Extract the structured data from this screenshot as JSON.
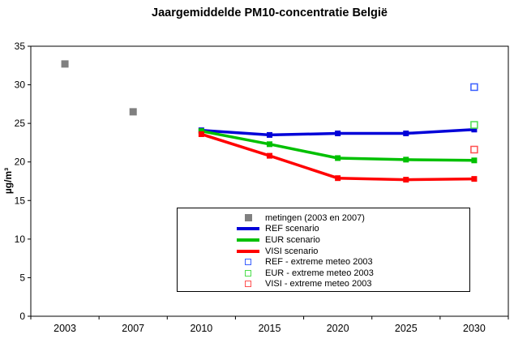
{
  "title": "Jaargemiddelde PM10-concentratie België",
  "chart_data": {
    "type": "line",
    "title": "Jaargemiddelde PM10-concentratie België",
    "xlabel": "",
    "ylabel": "µg/m³",
    "ylim": [
      0,
      35
    ],
    "ytick_step": 5,
    "grid": false,
    "legend_position": "inside-bottom-center",
    "categories": [
      "2003",
      "2007",
      "2010",
      "2015",
      "2020",
      "2025",
      "2030"
    ],
    "series": [
      {
        "name": "metingen (2003 en 2007)",
        "type": "points",
        "color": "#808080",
        "values": [
          32.7,
          26.5,
          null,
          null,
          null,
          null,
          null
        ]
      },
      {
        "name": "REF scenario",
        "type": "line",
        "color": "#0000D8",
        "values": [
          null,
          null,
          24.1,
          23.5,
          23.7,
          23.7,
          24.2
        ]
      },
      {
        "name": "EUR scenario",
        "type": "line",
        "color": "#00C000",
        "values": [
          null,
          null,
          24.0,
          22.3,
          20.5,
          20.3,
          20.2
        ]
      },
      {
        "name": "VISI scenario",
        "type": "line",
        "color": "#FF0000",
        "values": [
          null,
          null,
          23.6,
          20.8,
          17.9,
          17.7,
          17.8
        ]
      },
      {
        "name": "REF - extreme meteo 2003",
        "type": "open-points",
        "color": "#3A5FFF",
        "values": [
          null,
          null,
          null,
          null,
          null,
          null,
          29.7
        ]
      },
      {
        "name": "EUR - extreme meteo 2003",
        "type": "open-points",
        "color": "#4DDE4D",
        "values": [
          null,
          null,
          null,
          null,
          null,
          null,
          24.8
        ]
      },
      {
        "name": "VISI - extreme meteo 2003",
        "type": "open-points",
        "color": "#FF5050",
        "values": [
          null,
          null,
          null,
          null,
          null,
          null,
          21.6
        ]
      }
    ]
  }
}
